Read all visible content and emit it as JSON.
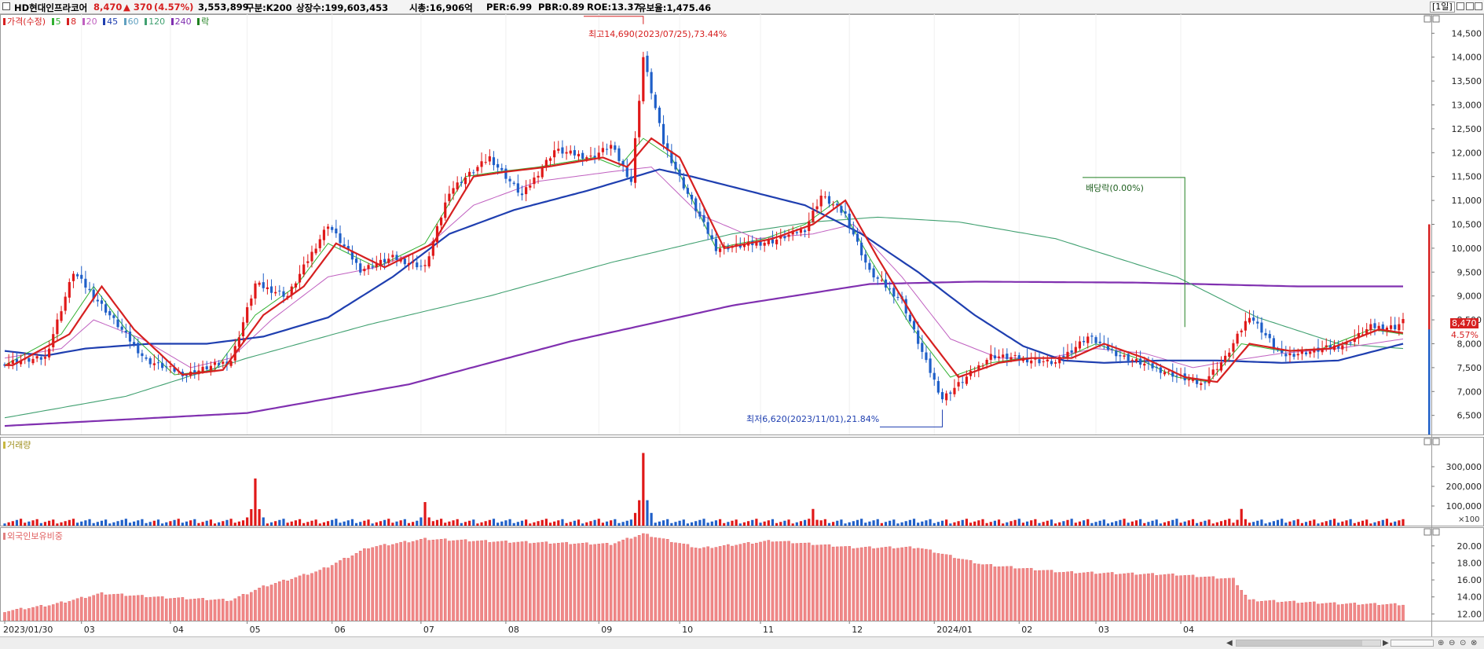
{
  "header": {
    "stock_name": "HD현대인프라코어",
    "price": "8,470",
    "change": "▲ 370",
    "change_pct": "(4.57%)",
    "volume": "3,553,899",
    "market": "구분:K200",
    "listed_shares": "상장수:199,603,453",
    "market_cap": "시총:16,906억",
    "per": "PER:6.99",
    "pbr": "PBR:0.89",
    "roe": "ROE:13.37",
    "float_ratio": "유보율:1,475.46",
    "period": "[1일]"
  },
  "price_legend": {
    "main": "가격(수정)",
    "ma": [
      "5",
      "8",
      "20",
      "45",
      "60",
      "120",
      "240"
    ],
    "extra": "락",
    "colors": {
      "main": "#d62020",
      "ma5": "#30b030",
      "ma8": "#d62020",
      "ma20": "#c060c0",
      "ma45": "#1f3fb0",
      "ma60": "#60a0c0",
      "ma120": "#40a070",
      "ma240": "#8030b0",
      "extra": "#208020"
    }
  },
  "volume_legend": "거래량",
  "foreign_legend": "외국인보유비중",
  "annotations": {
    "high": "최고14,690(2023/07/25),73.44%",
    "low": "최저6,620(2023/11/01),21.84%",
    "dividend": "배당락(0.00%)",
    "current_price": "8,470",
    "current_pct": "4.57%"
  },
  "volume_unit": "×100",
  "chart_data": [
    {
      "type": "candlestick",
      "title": "가격(수정)",
      "x_tick_labels": [
        "2023/01/30",
        "03",
        "04",
        "05",
        "06",
        "07",
        "08",
        "09",
        "10",
        "11",
        "12",
        "2024/01",
        "02",
        "03",
        "04"
      ],
      "y_ticks": [
        6500,
        7000,
        7500,
        8000,
        8500,
        9000,
        9500,
        10000,
        10500,
        11000,
        11500,
        12000,
        12500,
        13000,
        13500,
        14000,
        14500
      ],
      "ylim": [
        6100,
        14900
      ],
      "x_unit": "trading days from 2023/01/30",
      "close_by_day": [
        [
          0,
          7600
        ],
        [
          10,
          7700
        ],
        [
          17,
          9500
        ],
        [
          25,
          8700
        ],
        [
          35,
          7650
        ],
        [
          45,
          7350
        ],
        [
          50,
          7500
        ],
        [
          56,
          7650
        ],
        [
          62,
          9250
        ],
        [
          70,
          9000
        ],
        [
          80,
          10500
        ],
        [
          88,
          9550
        ],
        [
          96,
          9800
        ],
        [
          104,
          9600
        ],
        [
          110,
          11200
        ],
        [
          120,
          11900
        ],
        [
          128,
          11100
        ],
        [
          136,
          12050
        ],
        [
          145,
          11900
        ],
        [
          150,
          12150
        ],
        [
          155,
          11400
        ],
        [
          158,
          14000
        ],
        [
          163,
          12200
        ],
        [
          168,
          11300
        ],
        [
          176,
          10000
        ],
        [
          182,
          10050
        ],
        [
          190,
          10150
        ],
        [
          198,
          10400
        ],
        [
          202,
          11100
        ],
        [
          208,
          10700
        ],
        [
          214,
          9500
        ],
        [
          222,
          8900
        ],
        [
          228,
          7600
        ],
        [
          232,
          6850
        ],
        [
          238,
          7300
        ],
        [
          244,
          7750
        ],
        [
          250,
          7700
        ],
        [
          260,
          7600
        ],
        [
          268,
          8150
        ],
        [
          276,
          7750
        ],
        [
          286,
          7450
        ],
        [
          296,
          7150
        ],
        [
          302,
          7700
        ],
        [
          308,
          8600
        ],
        [
          316,
          7750
        ],
        [
          324,
          7850
        ],
        [
          332,
          8000
        ],
        [
          338,
          8350
        ],
        [
          344,
          8350
        ],
        [
          346,
          8470
        ]
      ],
      "ma_series": {
        "ma5": [
          [
            0,
            7550
          ],
          [
            14,
            8200
          ],
          [
            22,
            9200
          ],
          [
            30,
            8300
          ],
          [
            42,
            7350
          ],
          [
            52,
            7450
          ],
          [
            62,
            8600
          ],
          [
            72,
            9200
          ],
          [
            80,
            10100
          ],
          [
            92,
            9600
          ],
          [
            104,
            10100
          ],
          [
            114,
            11500
          ],
          [
            122,
            11600
          ],
          [
            132,
            11700
          ],
          [
            146,
            11900
          ],
          [
            152,
            11700
          ],
          [
            158,
            12300
          ],
          [
            165,
            11900
          ],
          [
            176,
            10000
          ],
          [
            188,
            10200
          ],
          [
            198,
            10500
          ],
          [
            206,
            11000
          ],
          [
            214,
            9800
          ],
          [
            224,
            8400
          ],
          [
            234,
            7300
          ],
          [
            244,
            7600
          ],
          [
            252,
            7700
          ],
          [
            262,
            7700
          ],
          [
            270,
            8000
          ],
          [
            280,
            7700
          ],
          [
            290,
            7300
          ],
          [
            298,
            7200
          ],
          [
            306,
            8000
          ],
          [
            316,
            7850
          ],
          [
            326,
            7900
          ],
          [
            338,
            8300
          ],
          [
            346,
            8200
          ]
        ],
        "ma20": [
          [
            0,
            7700
          ],
          [
            14,
            7900
          ],
          [
            22,
            8500
          ],
          [
            34,
            8100
          ],
          [
            46,
            7500
          ],
          [
            56,
            7700
          ],
          [
            66,
            8500
          ],
          [
            80,
            9400
          ],
          [
            92,
            9600
          ],
          [
            104,
            10000
          ],
          [
            116,
            10900
          ],
          [
            132,
            11400
          ],
          [
            150,
            11600
          ],
          [
            160,
            11700
          ],
          [
            172,
            10700
          ],
          [
            186,
            10200
          ],
          [
            200,
            10300
          ],
          [
            210,
            10500
          ],
          [
            222,
            9400
          ],
          [
            234,
            8100
          ],
          [
            246,
            7700
          ],
          [
            258,
            7700
          ],
          [
            270,
            7900
          ],
          [
            282,
            7800
          ],
          [
            294,
            7500
          ],
          [
            304,
            7650
          ],
          [
            316,
            7800
          ],
          [
            330,
            7900
          ],
          [
            346,
            8100
          ]
        ],
        "ma45": [
          [
            0,
            7850
          ],
          [
            10,
            7750
          ],
          [
            20,
            7900
          ],
          [
            36,
            8000
          ],
          [
            50,
            8000
          ],
          [
            64,
            8150
          ],
          [
            80,
            8550
          ],
          [
            96,
            9400
          ],
          [
            110,
            10300
          ],
          [
            126,
            10800
          ],
          [
            144,
            11200
          ],
          [
            156,
            11500
          ],
          [
            162,
            11650
          ],
          [
            170,
            11500
          ],
          [
            184,
            11200
          ],
          [
            198,
            10900
          ],
          [
            212,
            10300
          ],
          [
            226,
            9500
          ],
          [
            240,
            8600
          ],
          [
            252,
            7950
          ],
          [
            262,
            7650
          ],
          [
            272,
            7600
          ],
          [
            286,
            7650
          ],
          [
            300,
            7650
          ],
          [
            316,
            7600
          ],
          [
            330,
            7650
          ],
          [
            346,
            8000
          ]
        ],
        "ma120": [
          [
            0,
            6450
          ],
          [
            30,
            6900
          ],
          [
            60,
            7700
          ],
          [
            90,
            8400
          ],
          [
            120,
            9000
          ],
          [
            150,
            9700
          ],
          [
            180,
            10300
          ],
          [
            200,
            10550
          ],
          [
            216,
            10650
          ],
          [
            236,
            10550
          ],
          [
            260,
            10200
          ],
          [
            290,
            9400
          ],
          [
            310,
            8550
          ],
          [
            330,
            8000
          ],
          [
            346,
            7900
          ]
        ],
        "ma240": [
          [
            0,
            6280
          ],
          [
            60,
            6550
          ],
          [
            100,
            7150
          ],
          [
            140,
            8050
          ],
          [
            180,
            8800
          ],
          [
            214,
            9250
          ],
          [
            240,
            9300
          ],
          [
            280,
            9280
          ],
          [
            320,
            9200
          ],
          [
            346,
            9200
          ]
        ]
      }
    },
    {
      "type": "bar",
      "title": "거래량",
      "y_ticks": [
        100000,
        200000,
        300000
      ],
      "ylim": [
        0,
        380000
      ],
      "spikes": [
        [
          62,
          240000
        ],
        [
          104,
          120000
        ],
        [
          158,
          370000
        ],
        [
          200,
          85000
        ],
        [
          306,
          85000
        ]
      ],
      "base_level": 20000
    },
    {
      "type": "bar",
      "title": "외국인보유비중",
      "y_ticks": [
        12,
        14,
        16,
        18,
        20
      ],
      "ylim": [
        11.2,
        22.2
      ],
      "level_by_day": [
        [
          0,
          12.3
        ],
        [
          12,
          13.1
        ],
        [
          24,
          14.4
        ],
        [
          40,
          13.9
        ],
        [
          56,
          13.6
        ],
        [
          64,
          15.2
        ],
        [
          78,
          17.1
        ],
        [
          90,
          19.8
        ],
        [
          104,
          20.8
        ],
        [
          122,
          20.5
        ],
        [
          140,
          20.3
        ],
        [
          150,
          20.2
        ],
        [
          158,
          21.4
        ],
        [
          172,
          19.7
        ],
        [
          190,
          20.6
        ],
        [
          210,
          19.8
        ],
        [
          226,
          19.8
        ],
        [
          242,
          17.8
        ],
        [
          262,
          16.9
        ],
        [
          290,
          16.6
        ],
        [
          304,
          16.1
        ],
        [
          308,
          13.6
        ],
        [
          330,
          13.2
        ],
        [
          346,
          13.1
        ]
      ]
    }
  ]
}
